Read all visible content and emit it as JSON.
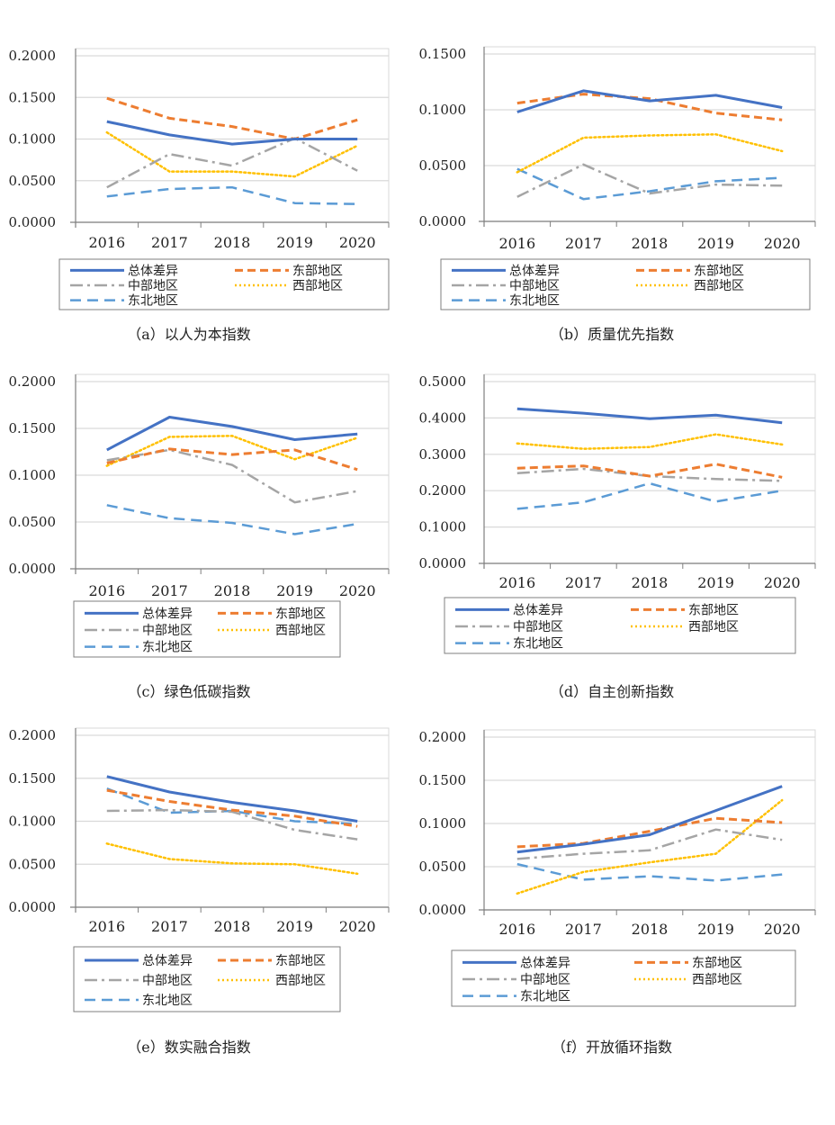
{
  "colors": {
    "总体差异": "#4472C4",
    "东部地区": "#ED7D31",
    "中部地区": "#A5A5A5",
    "西部地区": "#FFC000",
    "东北地区": "#5B9BD5",
    "gridline": "#D9D9D9",
    "axis": "#7F7F7F"
  },
  "legend_labels": [
    "总体差异",
    "东部地区",
    "中部地区",
    "西部地区",
    "东北地区"
  ],
  "chart_data": [
    {
      "id": "a",
      "type": "line",
      "caption": "（a）以人为本指数",
      "x": [
        "2016",
        "2017",
        "2018",
        "2019",
        "2020"
      ],
      "ylim": [
        0,
        0.2
      ],
      "yticks": [
        "0.0000",
        "0.0500",
        "0.1000",
        "0.1500",
        "0.2000"
      ],
      "grid": true,
      "legend": "bottom",
      "series": [
        {
          "name": "总体差异",
          "values": [
            0.121,
            0.105,
            0.094,
            0.1,
            0.1
          ]
        },
        {
          "name": "东部地区",
          "values": [
            0.149,
            0.125,
            0.115,
            0.1,
            0.123
          ]
        },
        {
          "name": "中部地区",
          "values": [
            0.042,
            0.082,
            0.068,
            0.101,
            0.062
          ]
        },
        {
          "name": "西部地区",
          "values": [
            0.108,
            0.061,
            0.061,
            0.055,
            0.092
          ]
        },
        {
          "name": "东北地区",
          "values": [
            0.031,
            0.04,
            0.042,
            0.023,
            0.022
          ]
        }
      ]
    },
    {
      "id": "b",
      "type": "line",
      "caption": "（b）质量优先指数",
      "x": [
        "2016",
        "2017",
        "2018",
        "2019",
        "2020"
      ],
      "ylim": [
        0,
        0.15
      ],
      "yticks": [
        "0.0000",
        "0.0500",
        "0.1000",
        "0.1500"
      ],
      "grid": true,
      "legend": "bottom",
      "series": [
        {
          "name": "总体差异",
          "values": [
            0.098,
            0.117,
            0.108,
            0.113,
            0.102
          ]
        },
        {
          "name": "东部地区",
          "values": [
            0.106,
            0.114,
            0.11,
            0.097,
            0.091
          ]
        },
        {
          "name": "中部地区",
          "values": [
            0.022,
            0.051,
            0.025,
            0.033,
            0.032
          ]
        },
        {
          "name": "西部地区",
          "values": [
            0.044,
            0.075,
            0.077,
            0.078,
            0.063
          ]
        },
        {
          "name": "东北地区",
          "values": [
            0.047,
            0.02,
            0.027,
            0.036,
            0.039
          ]
        }
      ]
    },
    {
      "id": "c",
      "type": "line",
      "caption": "（c）绿色低碳指数",
      "x": [
        "2016",
        "2017",
        "2018",
        "2019",
        "2020"
      ],
      "ylim": [
        0,
        0.2
      ],
      "yticks": [
        "0.0000",
        "0.0500",
        "0.1000",
        "0.1500",
        "0.2000"
      ],
      "grid": true,
      "legend": "bottom",
      "series": [
        {
          "name": "总体差异",
          "values": [
            0.127,
            0.162,
            0.152,
            0.138,
            0.144
          ]
        },
        {
          "name": "东部地区",
          "values": [
            0.113,
            0.128,
            0.122,
            0.127,
            0.106
          ]
        },
        {
          "name": "中部地区",
          "values": [
            0.116,
            0.127,
            0.111,
            0.071,
            0.083
          ]
        },
        {
          "name": "西部地区",
          "values": [
            0.11,
            0.141,
            0.142,
            0.117,
            0.14
          ]
        },
        {
          "name": "东北地区",
          "values": [
            0.068,
            0.054,
            0.049,
            0.037,
            0.048
          ]
        }
      ]
    },
    {
      "id": "d",
      "type": "line",
      "caption": "（d）自主创新指数",
      "x": [
        "2016",
        "2017",
        "2018",
        "2019",
        "2020"
      ],
      "ylim": [
        0,
        0.5
      ],
      "yticks": [
        "0.0000",
        "0.1000",
        "0.2000",
        "0.3000",
        "0.4000",
        "0.5000"
      ],
      "grid": true,
      "legend": "bottom",
      "series": [
        {
          "name": "总体差异",
          "values": [
            0.425,
            0.413,
            0.398,
            0.408,
            0.387
          ]
        },
        {
          "name": "东部地区",
          "values": [
            0.262,
            0.268,
            0.24,
            0.273,
            0.237
          ]
        },
        {
          "name": "中部地区",
          "values": [
            0.248,
            0.26,
            0.24,
            0.232,
            0.227
          ]
        },
        {
          "name": "西部地区",
          "values": [
            0.33,
            0.315,
            0.32,
            0.355,
            0.327
          ]
        },
        {
          "name": "东北地区",
          "values": [
            0.15,
            0.168,
            0.22,
            0.17,
            0.2
          ]
        }
      ]
    },
    {
      "id": "e",
      "type": "line",
      "caption": "（e）数实融合指数",
      "x": [
        "2016",
        "2017",
        "2018",
        "2019",
        "2020"
      ],
      "ylim": [
        0,
        0.2
      ],
      "yticks": [
        "0.0000",
        "0.0500",
        "0.1000",
        "0.1500",
        "0.2000"
      ],
      "grid": true,
      "legend": "bottom",
      "series": [
        {
          "name": "总体差异",
          "values": [
            0.152,
            0.134,
            0.122,
            0.112,
            0.1
          ]
        },
        {
          "name": "东部地区",
          "values": [
            0.136,
            0.123,
            0.113,
            0.106,
            0.094
          ]
        },
        {
          "name": "中部地区",
          "values": [
            0.112,
            0.113,
            0.111,
            0.09,
            0.079
          ]
        },
        {
          "name": "西部地区",
          "values": [
            0.074,
            0.056,
            0.051,
            0.05,
            0.039
          ]
        },
        {
          "name": "东北地区",
          "values": [
            0.138,
            0.11,
            0.112,
            0.1,
            0.097
          ]
        }
      ]
    },
    {
      "id": "f",
      "type": "line",
      "caption": "（f）开放循环指数",
      "x": [
        "2016",
        "2017",
        "2018",
        "2019",
        "2020"
      ],
      "ylim": [
        0,
        0.2
      ],
      "yticks": [
        "0.0000",
        "0.0500",
        "0.1000",
        "0.1500",
        "0.2000"
      ],
      "grid": true,
      "legend": "bottom",
      "series": [
        {
          "name": "总体差异",
          "values": [
            0.067,
            0.076,
            0.087,
            0.115,
            0.143
          ]
        },
        {
          "name": "东部地区",
          "values": [
            0.073,
            0.077,
            0.091,
            0.106,
            0.101
          ]
        },
        {
          "name": "中部地区",
          "values": [
            0.059,
            0.065,
            0.069,
            0.093,
            0.081
          ]
        },
        {
          "name": "西部地区",
          "values": [
            0.019,
            0.044,
            0.055,
            0.065,
            0.127
          ]
        },
        {
          "name": "东北地区",
          "values": [
            0.053,
            0.035,
            0.039,
            0.034,
            0.041
          ]
        }
      ]
    }
  ]
}
